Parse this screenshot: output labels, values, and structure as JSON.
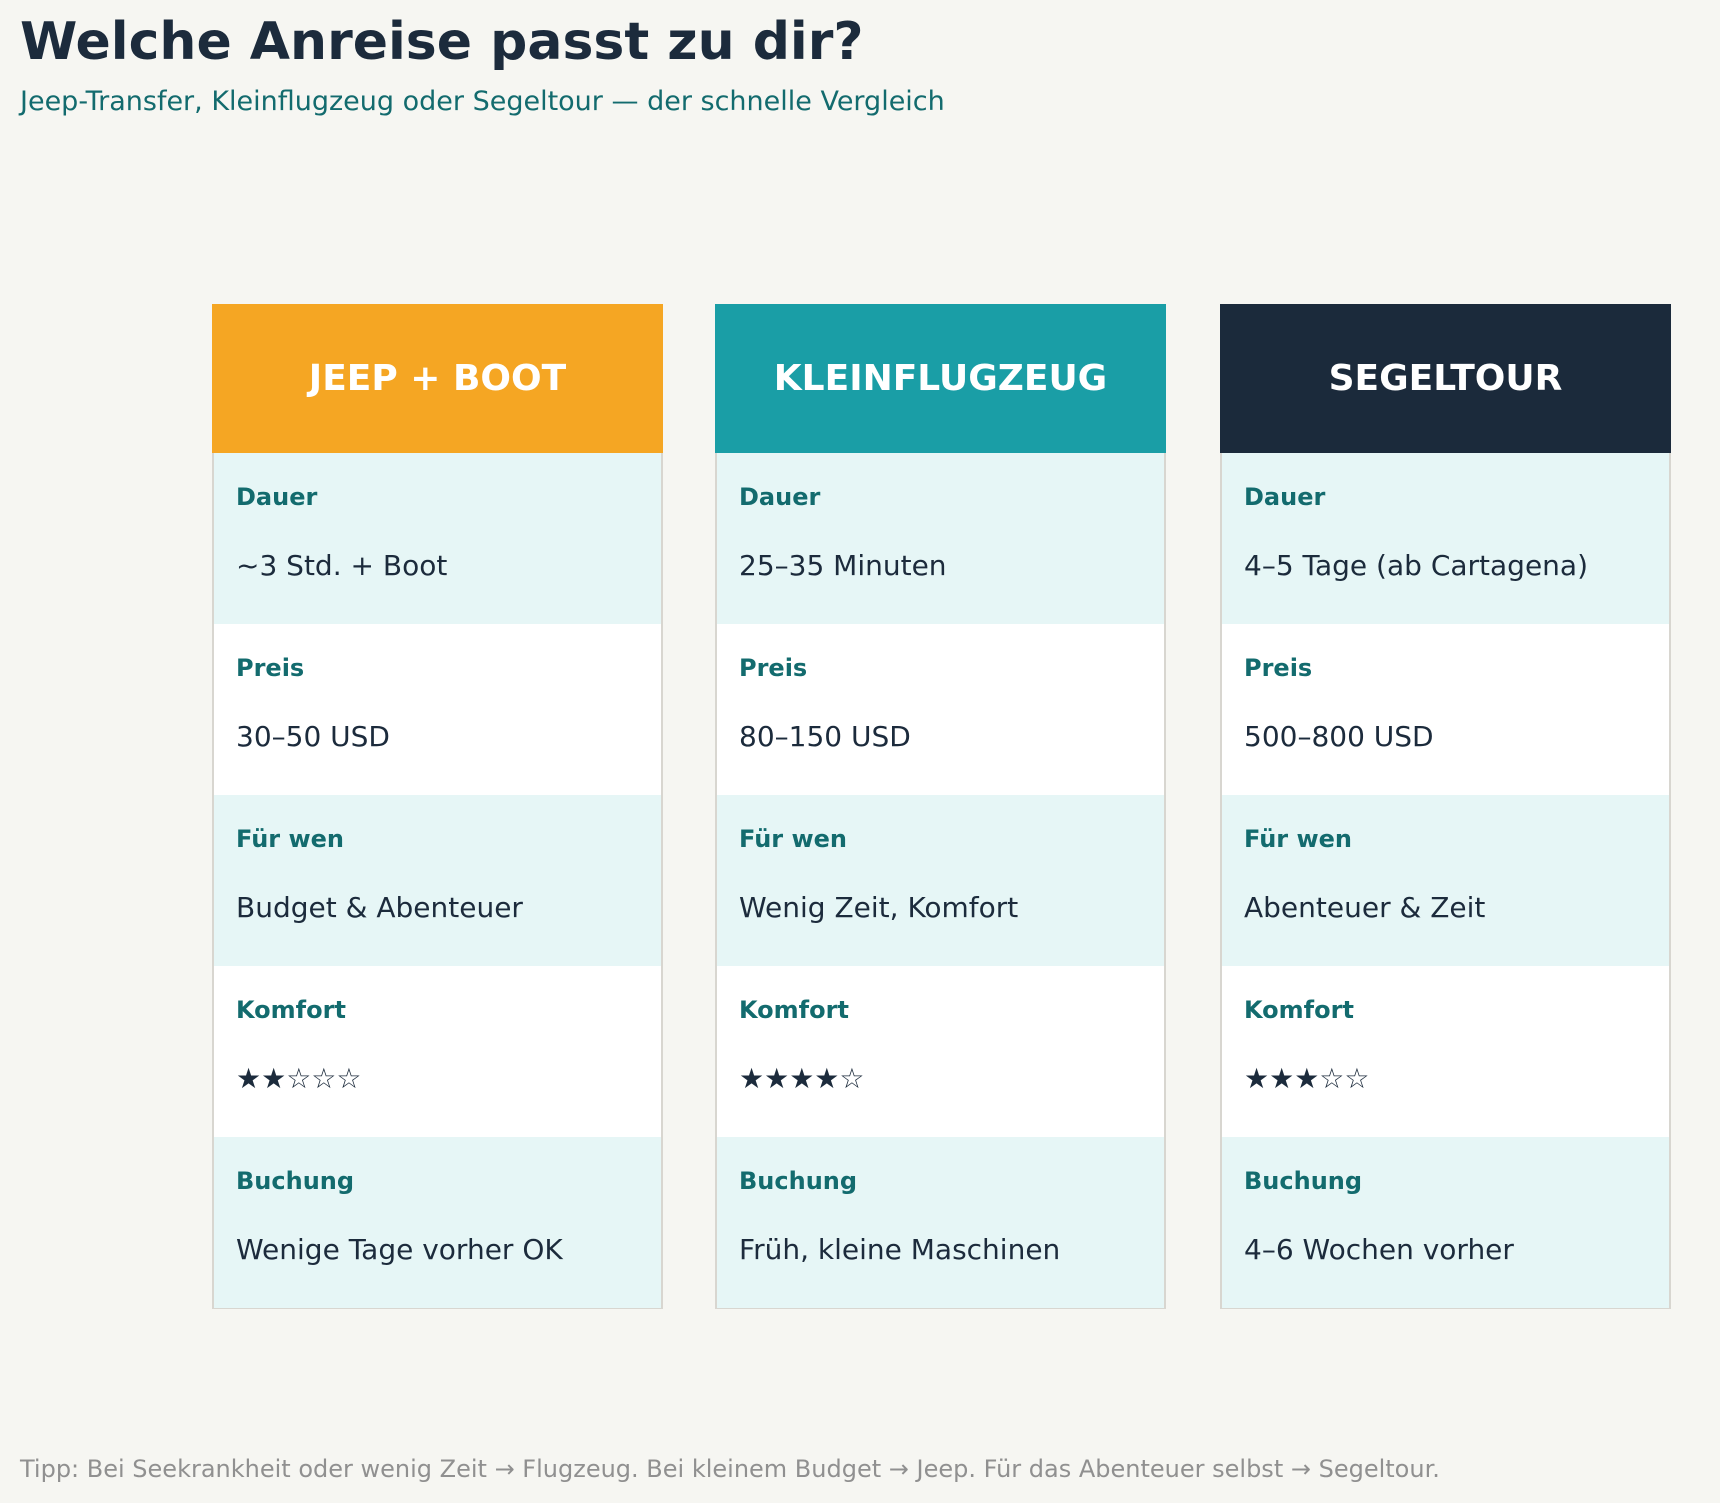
{
  "header": {
    "title": "Welche Anreise passt zu dir?",
    "subtitle": "Jeep-Transfer, Kleinflugzeug oder Segeltour — der schnelle Vergleich"
  },
  "cards": [
    {
      "title": "JEEP + BOOT",
      "rows": [
        {
          "label": "Dauer",
          "value": "~3 Std. + Boot"
        },
        {
          "label": "Preis",
          "value": "30–50 USD"
        },
        {
          "label": "Für wen",
          "value": "Budget & Abenteuer"
        },
        {
          "label": "Komfort",
          "value": "★★☆☆☆"
        },
        {
          "label": "Buchung",
          "value": "Wenige Tage vorher OK"
        }
      ]
    },
    {
      "title": "KLEINFLUGZEUG",
      "rows": [
        {
          "label": "Dauer",
          "value": "25–35 Minuten"
        },
        {
          "label": "Preis",
          "value": "80–150 USD"
        },
        {
          "label": "Für wen",
          "value": "Wenig Zeit, Komfort"
        },
        {
          "label": "Komfort",
          "value": "★★★★☆"
        },
        {
          "label": "Buchung",
          "value": "Früh, kleine Maschinen"
        }
      ]
    },
    {
      "title": "SEGELTOUR",
      "rows": [
        {
          "label": "Dauer",
          "value": "4–5 Tage (ab Cartagena)"
        },
        {
          "label": "Preis",
          "value": "500–800 USD"
        },
        {
          "label": "Für wen",
          "value": "Abenteuer & Zeit"
        },
        {
          "label": "Komfort",
          "value": "★★★☆☆"
        },
        {
          "label": "Buchung",
          "value": "4–6 Wochen vorher"
        }
      ]
    }
  ],
  "footer": "Tipp: Bei Seekrankheit oder wenig Zeit → Flugzeug. Bei kleinem Budget → Jeep. Für das Abenteuer selbst → Segeltour."
}
